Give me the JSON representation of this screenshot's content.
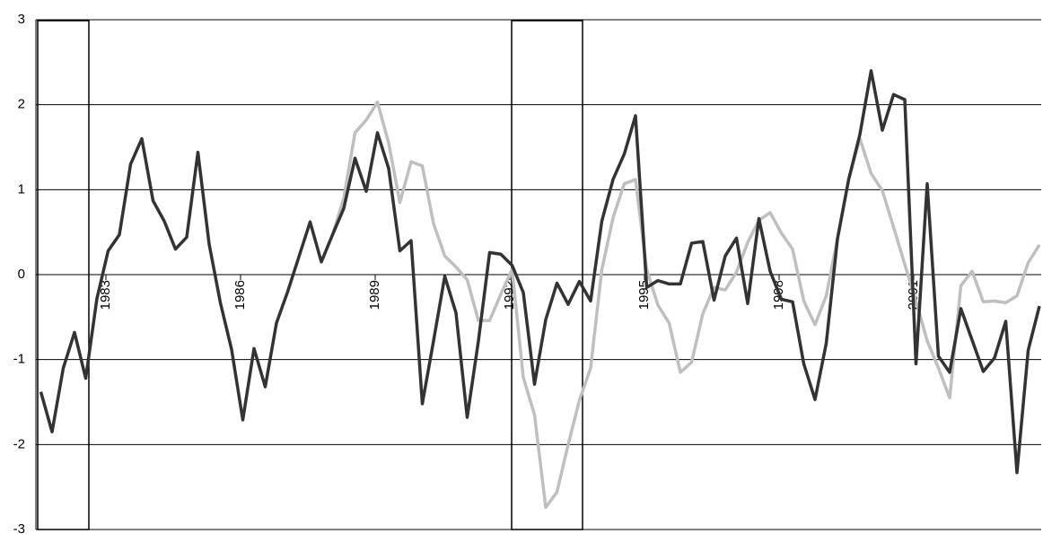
{
  "chart_data": {
    "type": "line",
    "x": [
      1981.55,
      1981.8,
      1982.05,
      1982.3,
      1982.55,
      1982.8,
      1983.05,
      1983.3,
      1983.55,
      1983.8,
      1984.05,
      1984.3,
      1984.55,
      1984.8,
      1985.05,
      1985.3,
      1985.55,
      1985.8,
      1986.05,
      1986.3,
      1986.55,
      1986.8,
      1987.05,
      1987.3,
      1987.55,
      1987.8,
      1988.05,
      1988.3,
      1988.55,
      1988.8,
      1989.05,
      1989.3,
      1989.55,
      1989.8,
      1990.05,
      1990.3,
      1990.55,
      1990.8,
      1991.05,
      1991.3,
      1991.55,
      1991.8,
      1992.05,
      1992.3,
      1992.55,
      1992.8,
      1993.05,
      1993.3,
      1993.55,
      1993.8,
      1994.05,
      1994.3,
      1994.55,
      1994.8,
      1995.05,
      1995.3,
      1995.55,
      1995.8,
      1996.05,
      1996.3,
      1996.55,
      1996.8,
      1997.05,
      1997.3,
      1997.55,
      1997.8,
      1998.05,
      1998.3,
      1998.55,
      1998.8,
      1999.05,
      1999.3,
      1999.55,
      1999.8,
      2000.05,
      2000.3,
      2000.55,
      2000.8,
      2001.05,
      2001.3,
      2001.55,
      2001.8,
      2002.05,
      2002.3,
      2002.55,
      2002.8,
      2003.05,
      2003.3,
      2003.55,
      2003.8
    ],
    "series": [
      {
        "color": "#bfbfbf",
        "values": [
          null,
          null,
          null,
          null,
          null,
          null,
          null,
          null,
          null,
          null,
          null,
          null,
          null,
          null,
          null,
          null,
          null,
          null,
          null,
          null,
          null,
          null,
          null,
          null,
          null,
          null,
          0.47,
          0.9,
          1.67,
          1.82,
          2.03,
          1.55,
          0.85,
          1.33,
          1.28,
          0.6,
          0.22,
          0.09,
          -0.06,
          -0.54,
          -0.54,
          -0.23,
          0.06,
          -1.21,
          -1.65,
          -2.74,
          -2.56,
          -2.0,
          -1.48,
          -1.1,
          0.06,
          0.67,
          1.07,
          1.12,
          0.06,
          -0.36,
          -0.57,
          -1.15,
          -1.03,
          -0.46,
          -0.15,
          -0.18,
          0.03,
          0.38,
          0.64,
          0.73,
          0.49,
          0.3,
          -0.31,
          -0.59,
          -0.25,
          0.42,
          1.12,
          1.6,
          1.19,
          0.99,
          0.56,
          0.12,
          -0.31,
          -0.78,
          -1.1,
          -1.45,
          -0.13,
          0.04,
          -0.32,
          -0.31,
          -0.33,
          -0.25,
          0.14,
          0.35
        ]
      },
      {
        "color": "#333333",
        "values": [
          -1.38,
          -1.85,
          -1.1,
          -0.68,
          -1.22,
          -0.28,
          0.28,
          0.47,
          1.3,
          1.6,
          0.87,
          0.63,
          0.3,
          0.44,
          1.44,
          0.36,
          -0.33,
          -0.88,
          -1.71,
          -0.87,
          -1.32,
          -0.57,
          -0.2,
          0.21,
          0.62,
          0.15,
          0.47,
          0.78,
          1.37,
          0.98,
          1.67,
          1.25,
          0.28,
          0.4,
          -1.52,
          -0.78,
          -0.02,
          -0.45,
          -1.68,
          -0.78,
          0.26,
          0.24,
          0.11,
          -0.21,
          -1.29,
          -0.53,
          -0.1,
          -0.35,
          -0.08,
          -0.31,
          0.63,
          1.12,
          1.42,
          1.87,
          -0.15,
          -0.07,
          -0.11,
          -0.11,
          0.37,
          0.39,
          -0.3,
          0.22,
          0.43,
          -0.34,
          0.66,
          0.04,
          -0.29,
          -0.32,
          -1.05,
          -1.47,
          -0.81,
          0.42,
          1.12,
          1.65,
          2.4,
          1.7,
          2.12,
          2.06,
          -1.05,
          1.07,
          -0.96,
          -1.15,
          -0.4,
          -0.77,
          -1.14,
          -0.98,
          -0.55,
          -2.33,
          -0.89,
          -0.37
        ]
      }
    ],
    "bands": [
      [
        1981.48,
        1982.62
      ],
      [
        1992.04,
        1993.62
      ]
    ],
    "xlim": [
      1981.44,
      2003.84
    ],
    "xticks": [
      1983,
      1986,
      1989,
      1992,
      1995,
      1998,
      2001
    ],
    "ylim": [
      -3,
      3
    ],
    "yticks": [
      -3,
      -2,
      -1,
      0,
      1,
      2,
      3
    ],
    "grid": true
  }
}
